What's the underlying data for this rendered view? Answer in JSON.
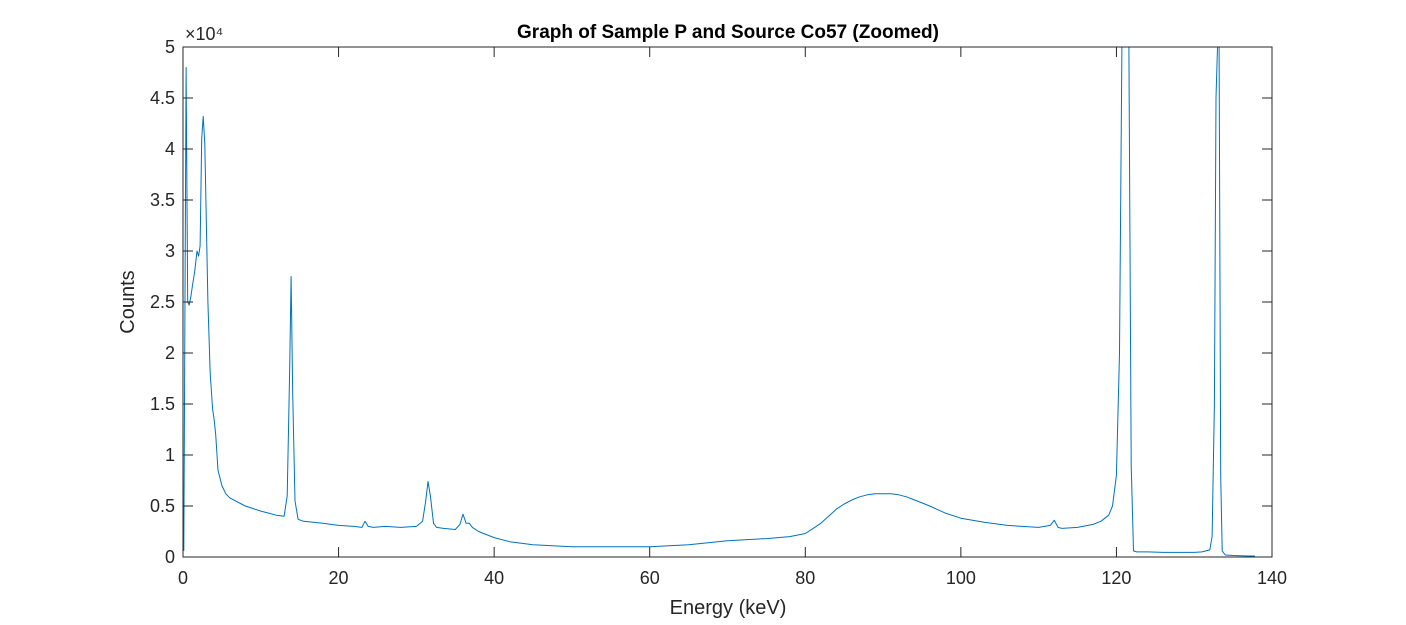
{
  "chart_data": {
    "type": "line",
    "title": "Graph of Sample P and Source Co57 (Zoomed)",
    "xlabel": "Energy (keV)",
    "ylabel": "Counts",
    "xlim": [
      0,
      140
    ],
    "ylim": [
      0,
      50000
    ],
    "x_ticks": [
      0,
      20,
      40,
      60,
      80,
      100,
      120,
      140
    ],
    "x_tick_labels": [
      "0",
      "20",
      "40",
      "60",
      "80",
      "100",
      "120",
      "140"
    ],
    "y_ticks": [
      0,
      5000,
      10000,
      15000,
      20000,
      25000,
      30000,
      35000,
      40000,
      45000,
      50000
    ],
    "y_tick_labels": [
      "0",
      "0.5",
      "1",
      "1.5",
      "2",
      "2.5",
      "3",
      "3.5",
      "4",
      "4.5",
      "5"
    ],
    "y_exponent_label": "×10⁴",
    "grid": false,
    "legend": "none",
    "series": [
      {
        "color": "#0072BD",
        "x": [
          0.1,
          0.4,
          0.6,
          0.8,
          1.0,
          1.2,
          1.5,
          1.8,
          2.0,
          2.2,
          2.4,
          2.6,
          2.8,
          3.0,
          3.2,
          3.5,
          3.8,
          4.0,
          4.2,
          4.5,
          5.0,
          5.5,
          6,
          8,
          10,
          11,
          12,
          13,
          13.4,
          13.7,
          13.9,
          14.1,
          14.4,
          14.8,
          15.5,
          18,
          20,
          22,
          23,
          23.4,
          23.8,
          24.5,
          26,
          28,
          30,
          30.8,
          31.2,
          31.5,
          31.8,
          32.2,
          32.6,
          33.5,
          35,
          35.6,
          36,
          36.4,
          36.8,
          37.2,
          38,
          40,
          42,
          45,
          50,
          55,
          60,
          65,
          70,
          75,
          78,
          80,
          81,
          82,
          83,
          84,
          85,
          86,
          87,
          88,
          89,
          90,
          91,
          92,
          93,
          94,
          95,
          96,
          98,
          100,
          103,
          106,
          110,
          111.5,
          112,
          112.5,
          113,
          115,
          117,
          118,
          119,
          119.5,
          120,
          120.4,
          120.7,
          121.0,
          121.3,
          121.6,
          121.9,
          122.2,
          122.6,
          124,
          126,
          128,
          130,
          131,
          132,
          132.3,
          132.6,
          132.8,
          133.0,
          133.2,
          133.4,
          133.6,
          134,
          135,
          137,
          137.8
        ],
        "y": [
          600,
          48000,
          25000,
          24700,
          25500,
          26500,
          28000,
          30000,
          29500,
          30500,
          41000,
          43200,
          40500,
          33000,
          25000,
          18000,
          14500,
          13500,
          12000,
          8500,
          7000,
          6200,
          5800,
          5000,
          4500,
          4300,
          4100,
          4000,
          6000,
          18000,
          27500,
          16000,
          5500,
          3700,
          3500,
          3300,
          3100,
          3000,
          2900,
          3500,
          3000,
          2900,
          3000,
          2900,
          3000,
          3500,
          5500,
          7400,
          6000,
          3300,
          2900,
          2800,
          2700,
          3200,
          4200,
          3300,
          3300,
          2900,
          2500,
          1900,
          1500,
          1200,
          1000,
          1000,
          1000,
          1200,
          1600,
          1800,
          2000,
          2300,
          2800,
          3300,
          4000,
          4700,
          5200,
          5600,
          5900,
          6100,
          6200,
          6200,
          6200,
          6100,
          5900,
          5600,
          5300,
          5000,
          4300,
          3800,
          3400,
          3100,
          2900,
          3100,
          3600,
          2900,
          2800,
          2900,
          3200,
          3500,
          4100,
          5000,
          8000,
          20000,
          50000,
          50000,
          50000,
          50000,
          9000,
          600,
          500,
          500,
          450,
          450,
          450,
          500,
          700,
          2000,
          15000,
          45000,
          50000,
          50000,
          8000,
          600,
          200,
          150,
          100,
          100
        ]
      }
    ]
  }
}
